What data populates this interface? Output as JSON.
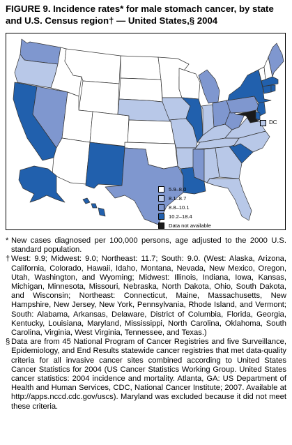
{
  "title": "FIGURE 9. Incidence rates* for male stomach cancer, by state and U.S. Census region† — United States,§ 2004",
  "colors": {
    "lowest": "#ffffff",
    "low": "#b8c8e8",
    "mid": "#7f97cf",
    "high": "#2160ad",
    "na": "#1a1a1a"
  },
  "legend": [
    {
      "label": "5.9–8.0",
      "color_key": "lowest"
    },
    {
      "label": "8.1–8.7",
      "color_key": "low"
    },
    {
      "label": "8.8–10.1",
      "color_key": "mid"
    },
    {
      "label": "10.2–18.4",
      "color_key": "high"
    },
    {
      "label": "Data not available",
      "color_key": "na"
    }
  ],
  "dc_label": "DC",
  "states": {
    "WA": "mid",
    "OR": "low",
    "CA": "high",
    "NV": "mid",
    "ID": "lowest",
    "MT": "lowest",
    "WY": "lowest",
    "UT": "lowest",
    "CO": "lowest",
    "AZ": "lowest",
    "NM": "high",
    "ND": "lowest",
    "SD": "lowest",
    "NE": "low",
    "KS": "lowest",
    "OK": "lowest",
    "TX": "mid",
    "MN": "lowest",
    "IA": "low",
    "MO": "low",
    "AR": "low",
    "LA": "high",
    "WI": "lowest",
    "IL": "high",
    "IN": "low",
    "MI": "mid",
    "OH": "mid",
    "KY": "low",
    "TN": "low",
    "MS": "mid",
    "AL": "low",
    "GA": "low",
    "FL": "low",
    "SC": "high",
    "NC": "low",
    "VA": "low",
    "WV": "mid",
    "PA": "mid",
    "NY": "high",
    "VT": "lowest",
    "NH": "lowest",
    "ME": "mid",
    "MA": "high",
    "CT": "high",
    "RI": "high",
    "NJ": "high",
    "DE": "high",
    "MD": "na",
    "AK": "high",
    "HI": "high"
  },
  "notes": [
    {
      "mark": "*",
      "text": "New cases diagnosed per 100,000 persons, age adjusted to the 2000 U.S. standard population."
    },
    {
      "mark": "†",
      "text": "West: 9.9; Midwest: 9.0; Northeast: 11.7; South: 9.0. (West: Alaska, Arizona, California, Colorado, Hawaii, Idaho, Montana, Nevada, New Mexico, Oregon, Utah, Washington, and Wyoming; Midwest: Illinois, Indiana, Iowa, Kansas, Michigan, Minnesota, Missouri, Nebraska, North Dakota, Ohio, South Dakota, and Wisconsin; Northeast: Connecticut, Maine, Massachusetts, New Hampshire, New Jersey, New York, Pennsylvania, Rhode Island, and Vermont; South: Alabama, Arkansas, Delaware, District of Columbia, Florida, Georgia, Kentucky, Louisiana, Maryland, Mississippi, North Carolina, Oklahoma, South Carolina, Virginia, West Virginia, Tennessee, and Texas.)"
    },
    {
      "mark": "§",
      "text": "Data are from 45 National Program of Cancer Registries and five Surveillance, Epidemiology, and End Results statewide cancer registries that met data-quality criteria for all invasive cancer sites combined according to United States Cancer Statistics for 2004 (US Cancer Statistics Working Group. United States cancer statistics: 2004 incidence and mortality. Atlanta, GA: US Department of Health and Human Services, CDC, National Cancer Institute; 2007. Available at http://apps.nccd.cdc.gov/uscs). Maryland was excluded because it did not meet these criteria."
    }
  ]
}
